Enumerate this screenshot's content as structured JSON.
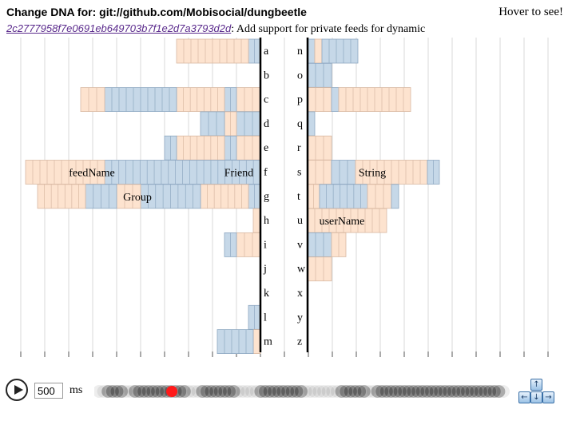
{
  "header": {
    "title": "Change DNA for: git://github.com/Mobisocial/dungbeetle",
    "hover_hint": "Hover to see!"
  },
  "commit": {
    "hash": "2c2777958f7e0691eb649703b7f1e2d7a3793d2d",
    "separator": ":",
    "message": " Add support for private feeds for dynamic"
  },
  "dna": {
    "left_letters": [
      "a",
      "b",
      "c",
      "d",
      "e",
      "f",
      "g",
      "h",
      "i",
      "j",
      "k",
      "l",
      "m"
    ],
    "right_letters": [
      "n",
      "o",
      "p",
      "q",
      "r",
      "s",
      "t",
      "u",
      "v",
      "w",
      "x",
      "y",
      "z"
    ],
    "word_labels": [
      {
        "text": "feedName",
        "letter": "f",
        "side": "left"
      },
      {
        "text": "Friend",
        "letter": "f",
        "side": "left"
      },
      {
        "text": "Group",
        "letter": "g",
        "side": "left"
      },
      {
        "text": "String",
        "letter": "s",
        "side": "right"
      },
      {
        "text": "userName",
        "letter": "u",
        "side": "right"
      }
    ],
    "colors": {
      "blue_fill": "#c6d8e8",
      "blue_stroke": "#8fa9c2",
      "peach_fill": "#fde3cf",
      "peach_stroke": "#d9b9a3"
    },
    "bars": {
      "a": [
        [
          "b",
          0.5
        ],
        [
          "p",
          3
        ]
      ],
      "b": [],
      "c": [
        [
          "p",
          1
        ],
        [
          "b",
          0.5
        ],
        [
          "p",
          2
        ],
        [
          "b",
          3
        ],
        [
          "p",
          1
        ]
      ],
      "d": [
        [
          "b",
          1
        ],
        [
          "p",
          0.5
        ],
        [
          "b",
          1
        ]
      ],
      "e": [
        [
          "p",
          1
        ],
        [
          "b",
          0.5
        ],
        [
          "p",
          2
        ],
        [
          "b",
          0.5
        ]
      ],
      "f": [
        [
          "b",
          6.5
        ],
        [
          "p",
          3.3
        ]
      ],
      "g": [
        [
          "b",
          0.5
        ],
        [
          "p",
          2
        ],
        [
          "b",
          2.5
        ],
        [
          "p",
          1
        ],
        [
          "b",
          1.3
        ],
        [
          "p",
          2
        ]
      ],
      "h": [
        [
          "p",
          0.3
        ]
      ],
      "i": [
        [
          "p",
          1
        ],
        [
          "b",
          0.5
        ]
      ],
      "j": [],
      "k": [],
      "l": [
        [
          "b",
          0.5
        ]
      ],
      "m": [
        [
          "p",
          0.3
        ],
        [
          "b",
          1.5
        ]
      ],
      "n": [
        [
          "b",
          0.3
        ],
        [
          "p",
          0.3
        ],
        [
          "b",
          1.5
        ]
      ],
      "o": [
        [
          "b",
          1
        ]
      ],
      "p": [
        [
          "p",
          1
        ],
        [
          "b",
          0.3
        ],
        [
          "p",
          3
        ]
      ],
      "q": [
        [
          "b",
          0.3
        ]
      ],
      "r": [
        [
          "p",
          1
        ]
      ],
      "s": [
        [
          "p",
          1
        ],
        [
          "b",
          1
        ],
        [
          "p",
          3
        ],
        [
          "b",
          0.5
        ]
      ],
      "t": [
        [
          "p",
          0.5
        ],
        [
          "b",
          2
        ],
        [
          "p",
          1
        ],
        [
          "b",
          0.3
        ]
      ],
      "u": [
        [
          "p",
          3.3
        ]
      ],
      "v": [
        [
          "b",
          1
        ],
        [
          "p",
          0.6
        ]
      ],
      "w": [
        [
          "p",
          1
        ]
      ],
      "x": [],
      "y": [],
      "z": []
    }
  },
  "player": {
    "speed_value": "500",
    "speed_unit": "ms",
    "timeline_position": 0.18,
    "keys": {
      "up": "↑",
      "left": "←",
      "down": "↓",
      "right": "→"
    },
    "accent_color": "#ff1a1a"
  }
}
